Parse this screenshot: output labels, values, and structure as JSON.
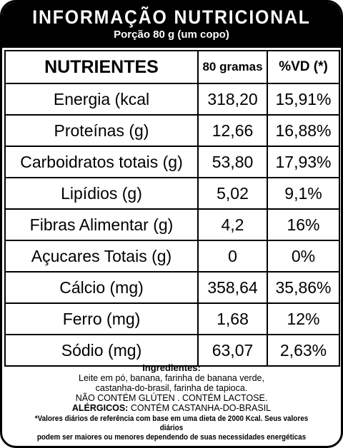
{
  "header": {
    "title": "INFORMAÇÃO NUTRICIONAL",
    "portion": "Porção 80 g (um copo)"
  },
  "table": {
    "headers": {
      "nutrient": "NUTRIENTES",
      "amount": "80 gramas",
      "vd": "%VD (*)"
    },
    "rows": [
      {
        "name": "Energia (kcal",
        "amount": "318,20",
        "vd": "15,91%"
      },
      {
        "name": "Proteínas (g)",
        "amount": "12,66",
        "vd": "16,88%"
      },
      {
        "name": "Carboidratos totais (g)",
        "amount": "53,80",
        "vd": "17,93%"
      },
      {
        "name": "Lipídios (g)",
        "amount": "5,02",
        "vd": "9,1%"
      },
      {
        "name": "Fibras Alimentar (g)",
        "amount": "4,2",
        "vd": "16%"
      },
      {
        "name": "Açucares Totais (g)",
        "amount": "0",
        "vd": "0%"
      },
      {
        "name": "Cálcio (mg)",
        "amount": "358,64",
        "vd": "35,86%"
      },
      {
        "name": "Ferro (mg)",
        "amount": "1,68",
        "vd": "12%"
      },
      {
        "name": "Sódio (mg)",
        "amount": "63,07",
        "vd": "2,63%"
      }
    ]
  },
  "ingredients": {
    "title": "Ingredientes:",
    "line1": "Leite em pó, banana, farinha de banana verde,",
    "line2": "castanha-do-brasil, farinha de tapioca.",
    "line3": "NÃO CONTÉM GLÚTEN . CONTÉM LACTOSE.",
    "allergens_label": "ALÉRGICOS:",
    "allergens_text": " CONTÉM CASTANHA-DO-BRASIL",
    "footnote1": "*Valores diários de referência com base em uma dieta de 2000 Kcal. Seus valores diários",
    "footnote2": "podem ser maiores ou menores dependendo de suas necessidades energéticas"
  }
}
